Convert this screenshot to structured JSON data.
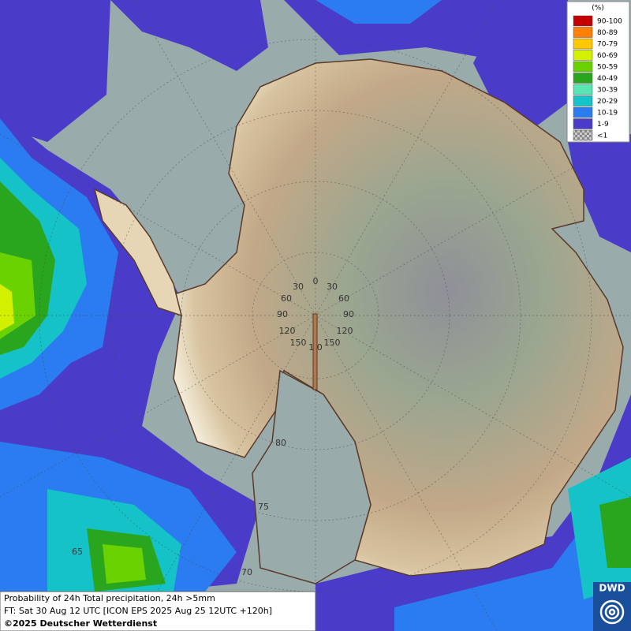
{
  "legend": {
    "title": "(%)",
    "items": [
      {
        "label": "90-100",
        "color": "#c40000"
      },
      {
        "label": "80-89",
        "color": "#ff7f00"
      },
      {
        "label": "70-79",
        "color": "#ffc800"
      },
      {
        "label": "60-69",
        "color": "#d2f000"
      },
      {
        "label": "50-59",
        "color": "#6ad200"
      },
      {
        "label": "40-49",
        "color": "#2aa61e"
      },
      {
        "label": "30-39",
        "color": "#5ae6b4"
      },
      {
        "label": "20-29",
        "color": "#14c2c8"
      },
      {
        "label": "10-19",
        "color": "#2a7cf0"
      },
      {
        "label": "1-9",
        "color": "#4a3cc8"
      },
      {
        "label": "<1",
        "color": "checker"
      }
    ]
  },
  "graticule": {
    "longitude_labels": [
      "0",
      "30",
      "30",
      "60",
      "60",
      "90",
      "90",
      "120",
      "120",
      "150",
      "150",
      "1 0"
    ],
    "latitude_labels": [
      "80",
      "75",
      "70",
      "65"
    ]
  },
  "caption": {
    "lines": [
      "Probability of 24h Total precipitation, 24h >5mm",
      "FT: Sat 30 Aug 12 UTC [ICON EPS 2025 Aug 25 12UTC +120h]"
    ],
    "copyright": "©2025 Deutscher Wetterdienst"
  },
  "logo": "DWD"
}
